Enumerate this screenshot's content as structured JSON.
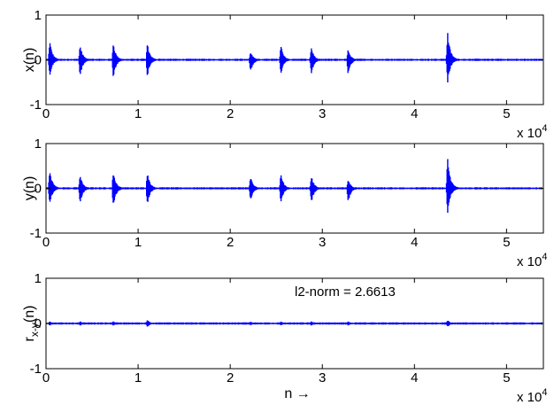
{
  "chart_data": [
    {
      "type": "line",
      "ylabel": "x(n)",
      "xlim": [
        0,
        54000
      ],
      "ylim": [
        -1,
        1
      ],
      "xticks": [
        0,
        1,
        2,
        3,
        4,
        5
      ],
      "xtick_labels": [
        "0",
        "1",
        "2",
        "3",
        "4",
        "5"
      ],
      "x_multiplier": "x 10",
      "x_multiplier_exp": "4",
      "yticks": [
        -1,
        0,
        1
      ],
      "ytick_labels": [
        "-1",
        "0",
        "1"
      ],
      "line_color": "#0000ff",
      "annotation": "",
      "xlabel": "",
      "bursts": [
        {
          "n": 400,
          "max": 0.45,
          "min": -0.4
        },
        {
          "n": 3700,
          "max": 0.35,
          "min": -0.4
        },
        {
          "n": 7300,
          "max": 0.4,
          "min": -0.45
        },
        {
          "n": 11000,
          "max": 0.38,
          "min": -0.4
        },
        {
          "n": 22200,
          "max": 0.2,
          "min": -0.3
        },
        {
          "n": 25500,
          "max": 0.35,
          "min": -0.35
        },
        {
          "n": 28800,
          "max": 0.3,
          "min": -0.35
        },
        {
          "n": 32800,
          "max": 0.25,
          "min": -0.35
        },
        {
          "n": 43600,
          "max": 0.65,
          "min": -0.55
        }
      ]
    },
    {
      "type": "line",
      "ylabel": "y(n)",
      "xlim": [
        0,
        54000
      ],
      "ylim": [
        -1,
        1
      ],
      "xticks": [
        0,
        1,
        2,
        3,
        4,
        5
      ],
      "xtick_labels": [
        "0",
        "1",
        "2",
        "3",
        "4",
        "5"
      ],
      "x_multiplier": "x 10",
      "x_multiplier_exp": "4",
      "yticks": [
        -1,
        0,
        1
      ],
      "ytick_labels": [
        "-1",
        "0",
        "1"
      ],
      "line_color": "#0000ff",
      "annotation": "",
      "xlabel": "",
      "bursts": [
        {
          "n": 400,
          "max": 0.45,
          "min": -0.4
        },
        {
          "n": 3700,
          "max": 0.33,
          "min": -0.38
        },
        {
          "n": 7300,
          "max": 0.4,
          "min": -0.45
        },
        {
          "n": 11000,
          "max": 0.38,
          "min": -0.4
        },
        {
          "n": 22200,
          "max": 0.28,
          "min": -0.3
        },
        {
          "n": 25500,
          "max": 0.35,
          "min": -0.35
        },
        {
          "n": 28800,
          "max": 0.3,
          "min": -0.35
        },
        {
          "n": 32800,
          "max": 0.22,
          "min": -0.35
        },
        {
          "n": 43600,
          "max": 0.72,
          "min": -0.6
        }
      ]
    },
    {
      "type": "line",
      "ylabel_main": "r",
      "ylabel_sub": "x-y",
      "ylabel_tail": "(n)",
      "xlim": [
        0,
        54000
      ],
      "ylim": [
        -1,
        1
      ],
      "xticks": [
        0,
        1,
        2,
        3,
        4,
        5
      ],
      "xtick_labels": [
        "0",
        "1",
        "2",
        "3",
        "4",
        "5"
      ],
      "x_multiplier": "x 10",
      "x_multiplier_exp": "4",
      "yticks": [
        -1,
        0,
        1
      ],
      "ytick_labels": [
        "-1",
        "0",
        "1"
      ],
      "line_color": "#0000ff",
      "annotation": "l2-norm =  2.6613",
      "xlabel": "n →",
      "bursts": [
        {
          "n": 400,
          "max": 0.05,
          "min": -0.05
        },
        {
          "n": 3700,
          "max": 0.05,
          "min": -0.05
        },
        {
          "n": 7300,
          "max": 0.05,
          "min": -0.05
        },
        {
          "n": 11000,
          "max": 0.08,
          "min": -0.08
        },
        {
          "n": 22200,
          "max": 0.04,
          "min": -0.04
        },
        {
          "n": 25500,
          "max": 0.05,
          "min": -0.05
        },
        {
          "n": 28800,
          "max": 0.05,
          "min": -0.05
        },
        {
          "n": 32800,
          "max": 0.05,
          "min": -0.05
        },
        {
          "n": 43600,
          "max": 0.08,
          "min": -0.08
        }
      ]
    }
  ]
}
